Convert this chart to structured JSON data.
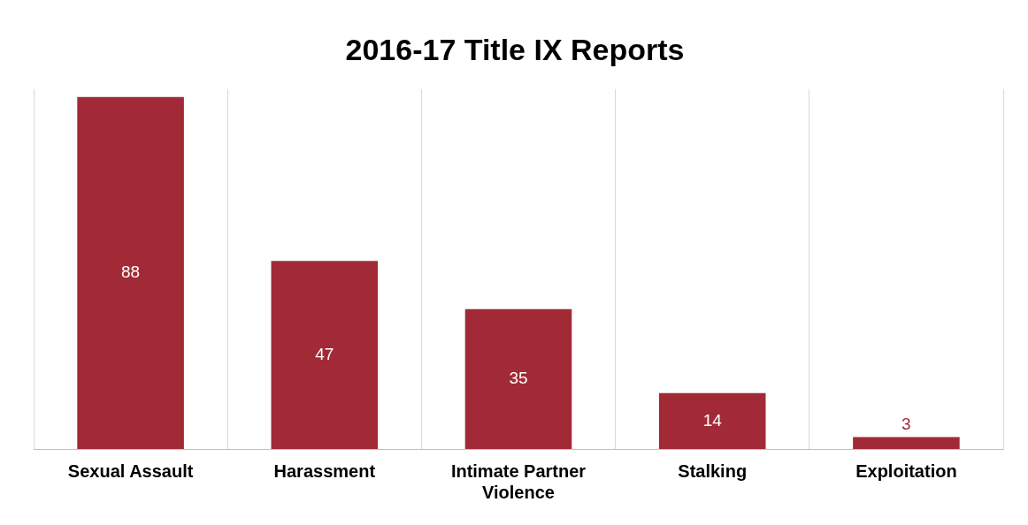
{
  "chart_data": {
    "type": "bar",
    "title": "2016-17 Title IX Reports",
    "categories": [
      "Sexual Assault",
      "Harassment",
      "Intimate Partner Violence",
      "Stalking",
      "Exploitation"
    ],
    "values": [
      88,
      47,
      35,
      14,
      3
    ],
    "color": "#a12a36",
    "data_labels": true,
    "grid": "x",
    "legend": false,
    "relative": false
  }
}
